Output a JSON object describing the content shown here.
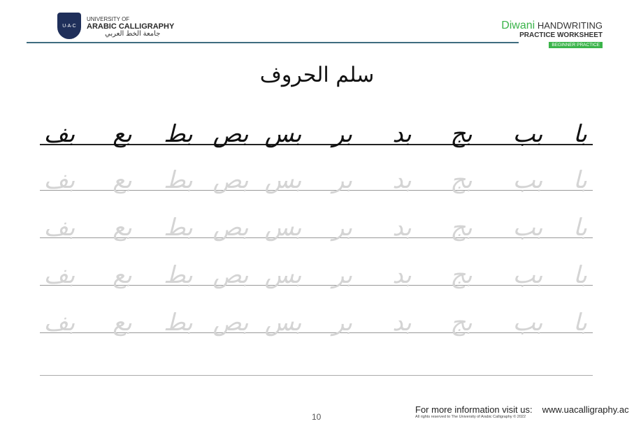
{
  "header": {
    "logo_text": "U·A·C",
    "university_line1": "UNIVERSITY OF",
    "university_line2": "ARABIC CALLIGRAPHY",
    "university_arabic": "جامعة الخط العربي",
    "title_script": "Diwani",
    "title_rest": "HANDWRITING",
    "subtitle": "PRACTICE WORKSHEET",
    "badge": "BEGINNER PRACTICE",
    "accent_color": "#3bb44a",
    "rule_color": "#3f6c7f"
  },
  "worksheet": {
    "title": "سلم الحروف",
    "letters": [
      "با",
      "بب",
      "بج",
      "بد",
      "بر",
      "بس",
      "بص",
      "بط",
      "بع",
      "بف"
    ],
    "trace_rows": 4
  },
  "footer": {
    "page_number": "10",
    "info_label": "For more information visit us:",
    "website": "www.uacalligraphy.ac",
    "rights": "All rights reserved to The University of Arabic Calligraphy © 2022"
  }
}
